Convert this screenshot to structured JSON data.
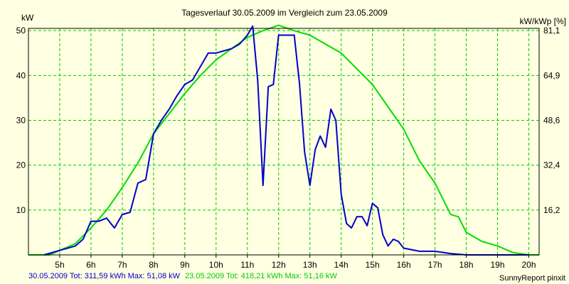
{
  "colors": {
    "background": "#ffffe1",
    "plot_background": "#ffffe1",
    "grid": "#00cc00",
    "series_blue": "#0000cc",
    "series_green": "#00dd00",
    "axis": "#000000"
  },
  "chart_data": {
    "type": "line",
    "title": "Tagesverlauf 30.05.2009 im Vergleich zum 23.05.2009",
    "ylabel_left": "kW",
    "ylabel_right": "kW/kWp [%]",
    "x_ticks": [
      "5h",
      "6h",
      "7h",
      "8h",
      "9h",
      "10h",
      "11h",
      "12h",
      "13h",
      "14h",
      "15h",
      "16h",
      "17h",
      "18h",
      "19h",
      "20h"
    ],
    "x_tick_values": [
      5,
      6,
      7,
      8,
      9,
      10,
      11,
      12,
      13,
      14,
      15,
      16,
      17,
      18,
      19,
      20
    ],
    "xlim": [
      4.0,
      20.33
    ],
    "ylim": [
      0,
      50.5
    ],
    "y_ticks_left": [
      10,
      20,
      30,
      40,
      50
    ],
    "y_ticks_right": [
      {
        "value": 10,
        "label": "16,2"
      },
      {
        "value": 20,
        "label": "32,4"
      },
      {
        "value": 30,
        "label": "48,6"
      },
      {
        "value": 40,
        "label": "64,9"
      },
      {
        "value": 50,
        "label": "81,1"
      }
    ],
    "grid": true,
    "series": [
      {
        "color": "#0000cc",
        "points": [
          [
            4.5,
            0
          ],
          [
            5.0,
            1.0
          ],
          [
            5.5,
            2.0
          ],
          [
            5.75,
            3.5
          ],
          [
            6.0,
            7.5
          ],
          [
            6.25,
            7.5
          ],
          [
            6.5,
            8.2
          ],
          [
            6.75,
            6.0
          ],
          [
            7.0,
            9.0
          ],
          [
            7.25,
            9.5
          ],
          [
            7.5,
            16.0
          ],
          [
            7.75,
            16.8
          ],
          [
            8.0,
            27.0
          ],
          [
            8.25,
            30.0
          ],
          [
            8.5,
            32.5
          ],
          [
            8.75,
            35.5
          ],
          [
            9.0,
            38.0
          ],
          [
            9.25,
            39.0
          ],
          [
            9.5,
            42.0
          ],
          [
            9.75,
            45.0
          ],
          [
            10.0,
            45.0
          ],
          [
            10.25,
            45.5
          ],
          [
            10.5,
            46.0
          ],
          [
            10.75,
            47.0
          ],
          [
            11.0,
            49.0
          ],
          [
            11.17,
            51.0
          ],
          [
            11.33,
            39.0
          ],
          [
            11.5,
            15.5
          ],
          [
            11.67,
            37.5
          ],
          [
            11.83,
            38.0
          ],
          [
            12.0,
            49.0
          ],
          [
            12.25,
            49.0
          ],
          [
            12.5,
            49.0
          ],
          [
            12.67,
            38.0
          ],
          [
            12.83,
            23.0
          ],
          [
            13.0,
            15.5
          ],
          [
            13.17,
            23.5
          ],
          [
            13.33,
            26.5
          ],
          [
            13.5,
            24.0
          ],
          [
            13.67,
            32.5
          ],
          [
            13.83,
            30.0
          ],
          [
            14.0,
            13.5
          ],
          [
            14.17,
            7.0
          ],
          [
            14.33,
            6.0
          ],
          [
            14.5,
            8.5
          ],
          [
            14.67,
            8.5
          ],
          [
            14.83,
            6.5
          ],
          [
            15.0,
            11.5
          ],
          [
            15.17,
            10.5
          ],
          [
            15.33,
            4.5
          ],
          [
            15.5,
            2.0
          ],
          [
            15.67,
            3.5
          ],
          [
            15.83,
            3.0
          ],
          [
            16.0,
            1.5
          ],
          [
            16.5,
            0.8
          ],
          [
            17.0,
            0.8
          ],
          [
            17.5,
            0.3
          ],
          [
            18.0,
            0.0
          ],
          [
            20.0,
            0.0
          ]
        ]
      },
      {
        "color": "#00dd00",
        "points": [
          [
            4.0,
            0
          ],
          [
            4.67,
            0
          ],
          [
            5.0,
            1.0
          ],
          [
            5.5,
            2.5
          ],
          [
            6.0,
            6.0
          ],
          [
            6.5,
            10.0
          ],
          [
            7.0,
            15.0
          ],
          [
            7.5,
            20.5
          ],
          [
            8.0,
            27.0
          ],
          [
            8.5,
            31.5
          ],
          [
            9.0,
            36.0
          ],
          [
            9.5,
            40.0
          ],
          [
            10.0,
            43.5
          ],
          [
            10.5,
            46.0
          ],
          [
            11.0,
            48.5
          ],
          [
            11.5,
            50.0
          ],
          [
            12.0,
            51.2
          ],
          [
            12.5,
            50.0
          ],
          [
            13.0,
            49.0
          ],
          [
            13.5,
            47.0
          ],
          [
            14.0,
            45.0
          ],
          [
            14.5,
            41.5
          ],
          [
            15.0,
            38.0
          ],
          [
            15.5,
            33.0
          ],
          [
            16.0,
            28.0
          ],
          [
            16.5,
            21.0
          ],
          [
            17.0,
            16.0
          ],
          [
            17.5,
            9.0
          ],
          [
            17.75,
            8.5
          ],
          [
            18.0,
            5.0
          ],
          [
            18.5,
            3.0
          ],
          [
            19.0,
            2.0
          ],
          [
            19.5,
            0.5
          ],
          [
            20.0,
            0.0
          ],
          [
            20.33,
            0.0
          ]
        ]
      }
    ]
  },
  "footer": {
    "legend_blue": "30.05.2009 Tot: 311,59 kWh Max: 51,08 kW",
    "legend_green": "23.05.2009 Tot: 418,21 kWh Max: 51,16 kW",
    "credit": "SunnyReport pinxit"
  }
}
